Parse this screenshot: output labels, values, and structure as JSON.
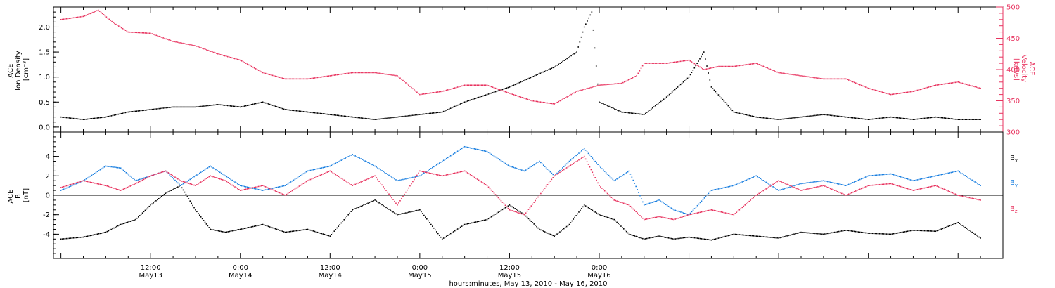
{
  "chart_data": [
    {
      "type": "scatter",
      "panel": "top",
      "ylabel_left": [
        "ACE",
        "Ion Density",
        "[cm⁻³]"
      ],
      "ylabel_right": [
        "ACE",
        "Velocity",
        "[km/s]"
      ],
      "y_left_lim": [
        -0.1,
        2.4
      ],
      "y_left_ticks": [
        "0.0",
        "0.5",
        "1.0",
        "1.5",
        "2.0"
      ],
      "y_right_lim": [
        300,
        500
      ],
      "y_right_ticks": [
        "300",
        "350",
        "400",
        "450",
        "500"
      ],
      "colors": {
        "density": "#000000",
        "velocity": "#e8335f"
      },
      "series": [
        {
          "key": "density",
          "axis": "left",
          "points": [
            [
              0,
              0.2
            ],
            [
              3,
              0.15
            ],
            [
              6,
              0.2
            ],
            [
              9,
              0.3
            ],
            [
              12,
              0.35
            ],
            [
              15,
              0.4
            ],
            [
              18,
              0.4
            ],
            [
              21,
              0.45
            ],
            [
              24,
              0.4
            ],
            [
              27,
              0.5
            ],
            [
              30,
              0.35
            ],
            [
              33,
              0.3
            ],
            [
              36,
              0.25
            ],
            [
              39,
              0.2
            ],
            [
              42,
              0.15
            ],
            [
              45,
              0.2
            ],
            [
              48,
              0.25
            ],
            [
              51,
              0.3
            ],
            [
              54,
              0.5
            ],
            [
              57,
              0.65
            ],
            [
              60,
              0.8
            ],
            [
              63,
              1.0
            ],
            [
              66,
              1.2
            ],
            [
              69,
              1.5
            ],
            [
              70,
              2.0
            ],
            [
              71,
              2.3
            ],
            [
              72,
              0.5
            ],
            [
              75,
              0.3
            ],
            [
              78,
              0.25
            ],
            [
              81,
              0.6
            ],
            [
              84,
              1.0
            ],
            [
              86,
              1.5
            ],
            [
              87,
              0.8
            ],
            [
              90,
              0.3
            ],
            [
              93,
              0.2
            ],
            [
              96,
              0.15
            ],
            [
              99,
              0.2
            ],
            [
              102,
              0.25
            ],
            [
              105,
              0.2
            ],
            [
              108,
              0.15
            ],
            [
              111,
              0.2
            ],
            [
              114,
              0.15
            ],
            [
              117,
              0.2
            ],
            [
              120,
              0.15
            ],
            [
              123,
              0.15
            ]
          ]
        },
        {
          "key": "velocity",
          "axis": "right",
          "points": [
            [
              0,
              480
            ],
            [
              3,
              485
            ],
            [
              5,
              495
            ],
            [
              7,
              475
            ],
            [
              9,
              460
            ],
            [
              12,
              458
            ],
            [
              15,
              445
            ],
            [
              18,
              438
            ],
            [
              21,
              425
            ],
            [
              24,
              415
            ],
            [
              27,
              395
            ],
            [
              30,
              385
            ],
            [
              33,
              385
            ],
            [
              36,
              390
            ],
            [
              39,
              395
            ],
            [
              42,
              395
            ],
            [
              45,
              390
            ],
            [
              48,
              360
            ],
            [
              51,
              365
            ],
            [
              54,
              375
            ],
            [
              57,
              375
            ],
            [
              60,
              362
            ],
            [
              63,
              350
            ],
            [
              66,
              345
            ],
            [
              69,
              365
            ],
            [
              72,
              375
            ],
            [
              75,
              378
            ],
            [
              77,
              390
            ],
            [
              78,
              410
            ],
            [
              81,
              410
            ],
            [
              84,
              415
            ],
            [
              86,
              400
            ],
            [
              88,
              405
            ],
            [
              90,
              405
            ],
            [
              93,
              410
            ],
            [
              96,
              395
            ],
            [
              99,
              390
            ],
            [
              102,
              385
            ],
            [
              105,
              385
            ],
            [
              108,
              370
            ],
            [
              111,
              360
            ],
            [
              114,
              365
            ],
            [
              117,
              375
            ],
            [
              120,
              380
            ],
            [
              123,
              370
            ]
          ]
        }
      ]
    },
    {
      "type": "scatter",
      "panel": "bottom",
      "ylabel_left": [
        "ACE",
        "B",
        "[nT]"
      ],
      "ylim": [
        -6.5,
        6.5
      ],
      "y_ticks": [
        "-4",
        "-2",
        "0",
        "2",
        "4"
      ],
      "legend": [
        "B",
        "B",
        "B"
      ],
      "legend_sub": [
        "x",
        "y",
        "z"
      ],
      "colors": {
        "bx": "#000000",
        "by": "#1a7fe0",
        "bz": "#e8335f"
      },
      "series": [
        {
          "key": "bx",
          "points": [
            [
              0,
              -4.5
            ],
            [
              3,
              -4.3
            ],
            [
              6,
              -3.8
            ],
            [
              8,
              -3.0
            ],
            [
              10,
              -2.5
            ],
            [
              12,
              -1.0
            ],
            [
              14,
              0.2
            ],
            [
              16,
              1.0
            ],
            [
              18,
              -1.5
            ],
            [
              20,
              -3.5
            ],
            [
              22,
              -3.8
            ],
            [
              24,
              -3.5
            ],
            [
              27,
              -3.0
            ],
            [
              30,
              -3.8
            ],
            [
              33,
              -3.5
            ],
            [
              36,
              -4.2
            ],
            [
              39,
              -1.5
            ],
            [
              42,
              -0.5
            ],
            [
              45,
              -2.0
            ],
            [
              48,
              -1.5
            ],
            [
              51,
              -4.5
            ],
            [
              54,
              -3.0
            ],
            [
              57,
              -2.5
            ],
            [
              60,
              -1.0
            ],
            [
              62,
              -2.0
            ],
            [
              64,
              -3.5
            ],
            [
              66,
              -4.2
            ],
            [
              68,
              -3.0
            ],
            [
              70,
              -1.0
            ],
            [
              72,
              -2.0
            ],
            [
              74,
              -2.5
            ],
            [
              76,
              -4.0
            ],
            [
              78,
              -4.5
            ],
            [
              80,
              -4.2
            ],
            [
              82,
              -4.5
            ],
            [
              84,
              -4.3
            ],
            [
              87,
              -4.6
            ],
            [
              90,
              -4.0
            ],
            [
              93,
              -4.2
            ],
            [
              96,
              -4.4
            ],
            [
              99,
              -3.8
            ],
            [
              102,
              -4.0
            ],
            [
              105,
              -3.6
            ],
            [
              108,
              -3.9
            ],
            [
              111,
              -4.0
            ],
            [
              114,
              -3.6
            ],
            [
              117,
              -3.7
            ],
            [
              120,
              -2.8
            ],
            [
              123,
              -4.4
            ]
          ]
        },
        {
          "key": "by",
          "points": [
            [
              0,
              0.5
            ],
            [
              3,
              1.5
            ],
            [
              6,
              3.0
            ],
            [
              8,
              2.8
            ],
            [
              10,
              1.5
            ],
            [
              12,
              2.0
            ],
            [
              14,
              2.5
            ],
            [
              16,
              1.0
            ],
            [
              18,
              2.0
            ],
            [
              20,
              3.0
            ],
            [
              22,
              2.0
            ],
            [
              24,
              1.0
            ],
            [
              27,
              0.5
            ],
            [
              30,
              1.0
            ],
            [
              33,
              2.5
            ],
            [
              36,
              3.0
            ],
            [
              39,
              4.2
            ],
            [
              42,
              3.0
            ],
            [
              45,
              1.5
            ],
            [
              48,
              2.0
            ],
            [
              51,
              3.5
            ],
            [
              54,
              5.0
            ],
            [
              57,
              4.5
            ],
            [
              60,
              3.0
            ],
            [
              62,
              2.5
            ],
            [
              64,
              3.5
            ],
            [
              66,
              2.0
            ],
            [
              68,
              3.5
            ],
            [
              70,
              4.8
            ],
            [
              72,
              3.0
            ],
            [
              74,
              1.5
            ],
            [
              76,
              2.5
            ],
            [
              78,
              -1.0
            ],
            [
              80,
              -0.5
            ],
            [
              82,
              -1.5
            ],
            [
              84,
              -2.0
            ],
            [
              87,
              0.5
            ],
            [
              90,
              1.0
            ],
            [
              93,
              2.0
            ],
            [
              96,
              0.5
            ],
            [
              99,
              1.2
            ],
            [
              102,
              1.5
            ],
            [
              105,
              1.0
            ],
            [
              108,
              2.0
            ],
            [
              111,
              2.2
            ],
            [
              114,
              1.5
            ],
            [
              117,
              2.0
            ],
            [
              120,
              2.5
            ],
            [
              123,
              1.0
            ]
          ]
        },
        {
          "key": "bz",
          "points": [
            [
              0,
              0.8
            ],
            [
              3,
              1.5
            ],
            [
              6,
              1.0
            ],
            [
              8,
              0.5
            ],
            [
              10,
              1.2
            ],
            [
              12,
              2.0
            ],
            [
              14,
              2.5
            ],
            [
              16,
              1.5
            ],
            [
              18,
              1.0
            ],
            [
              20,
              2.0
            ],
            [
              22,
              1.5
            ],
            [
              24,
              0.5
            ],
            [
              27,
              1.0
            ],
            [
              30,
              0.0
            ],
            [
              33,
              1.5
            ],
            [
              36,
              2.5
            ],
            [
              39,
              1.0
            ],
            [
              42,
              2.0
            ],
            [
              45,
              -1.0
            ],
            [
              48,
              2.5
            ],
            [
              51,
              2.0
            ],
            [
              54,
              2.5
            ],
            [
              57,
              1.0
            ],
            [
              60,
              -1.5
            ],
            [
              62,
              -2.0
            ],
            [
              64,
              0.0
            ],
            [
              66,
              2.0
            ],
            [
              68,
              3.0
            ],
            [
              70,
              4.0
            ],
            [
              72,
              1.0
            ],
            [
              74,
              -0.5
            ],
            [
              76,
              -1.0
            ],
            [
              78,
              -2.5
            ],
            [
              80,
              -2.2
            ],
            [
              82,
              -2.5
            ],
            [
              84,
              -2.0
            ],
            [
              87,
              -1.5
            ],
            [
              90,
              -2.0
            ],
            [
              93,
              0.0
            ],
            [
              96,
              1.5
            ],
            [
              99,
              0.5
            ],
            [
              102,
              1.0
            ],
            [
              105,
              0.0
            ],
            [
              108,
              1.0
            ],
            [
              111,
              1.2
            ],
            [
              114,
              0.5
            ],
            [
              117,
              1.0
            ],
            [
              120,
              0.0
            ],
            [
              123,
              -0.5
            ]
          ]
        }
      ]
    }
  ],
  "x_axis": {
    "xlim_hours": [
      -1,
      126
    ],
    "ticks": [
      {
        "hours": 12,
        "time": "12:00",
        "date": "May13"
      },
      {
        "hours": 24,
        "time": "0:00",
        "date": "May14"
      },
      {
        "hours": 36,
        "time": "12:00",
        "date": "May14"
      },
      {
        "hours": 48,
        "time": "0:00",
        "date": "May15"
      },
      {
        "hours": 60,
        "time": "12:00",
        "date": "May15"
      },
      {
        "hours": 72,
        "time": "0:00",
        "date": "May16"
      }
    ],
    "xlabel": "hours:minutes, May 13, 2010 - May 16, 2010"
  }
}
